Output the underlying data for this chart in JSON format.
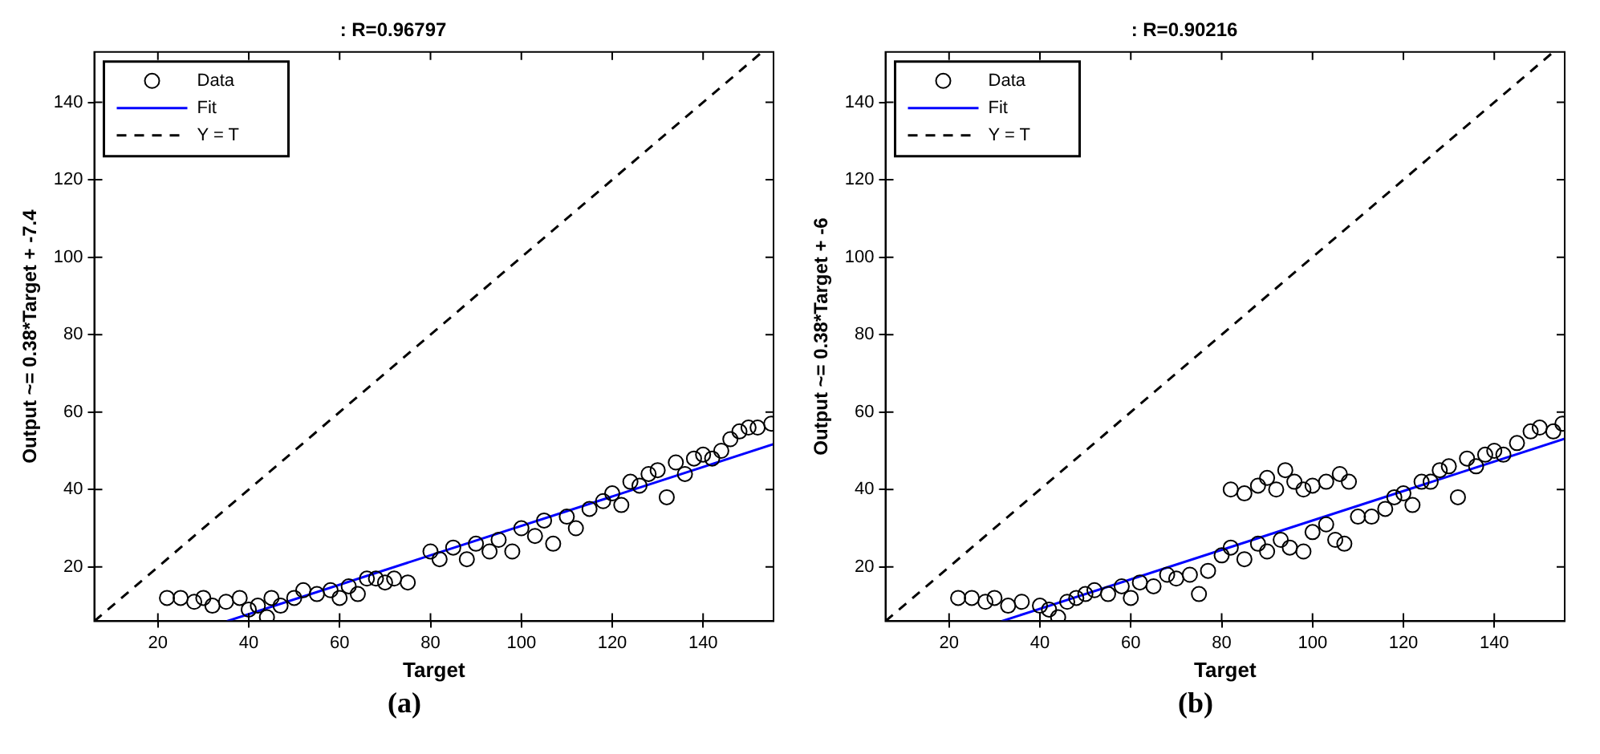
{
  "chart_data": [
    {
      "type": "scatter",
      "title": ": R=0.96797",
      "xlabel": "Target",
      "ylabel": "Output ~= 0.38*Target + -7.4",
      "annotations": [
        "(a)"
      ],
      "xlim": [
        6,
        155.5
      ],
      "ylim": [
        6,
        153
      ],
      "xticks": [
        20,
        40,
        60,
        80,
        100,
        120,
        140
      ],
      "yticks": [
        20,
        40,
        60,
        80,
        100,
        120,
        140
      ],
      "grid": false,
      "legend": "top left",
      "series": [
        {
          "name": "Data",
          "type": "scatter",
          "marker": "circle",
          "color": "#000000",
          "x": [
            22,
            25,
            28,
            30,
            32,
            35,
            38,
            40,
            42,
            44,
            45,
            47,
            50,
            52,
            55,
            58,
            60,
            62,
            64,
            66,
            68,
            70,
            72,
            75,
            80,
            82,
            85,
            88,
            90,
            93,
            95,
            98,
            100,
            103,
            105,
            107,
            110,
            112,
            115,
            118,
            120,
            122,
            124,
            126,
            128,
            130,
            132,
            134,
            136,
            138,
            140,
            142,
            144,
            146,
            148,
            150,
            152,
            155
          ],
          "values": [
            12,
            12,
            11,
            12,
            10,
            11,
            12,
            9,
            10,
            7,
            12,
            10,
            12,
            14,
            13,
            14,
            12,
            15,
            13,
            17,
            17,
            16,
            17,
            16,
            24,
            22,
            25,
            22,
            26,
            24,
            27,
            24,
            30,
            28,
            32,
            26,
            33,
            30,
            35,
            37,
            39,
            36,
            42,
            41,
            44,
            45,
            38,
            47,
            44,
            48,
            49,
            48,
            50,
            53,
            55,
            56,
            56,
            57
          ]
        },
        {
          "name": "Fit",
          "type": "line",
          "marker": "none",
          "color": "#0000ff",
          "x": [
            35.2,
            155.5
          ],
          "values": [
            6,
            51.7
          ]
        },
        {
          "name": "Y = T",
          "type": "line",
          "marker": "none",
          "line_style": "dashed",
          "color": "#000000",
          "x": [
            6,
            153
          ],
          "values": [
            6,
            153
          ]
        }
      ]
    },
    {
      "type": "scatter",
      "title": ": R=0.90216",
      "xlabel": "Target",
      "ylabel": "Output ~= 0.38*Target + -6",
      "annotations": [
        "(b)"
      ],
      "xlim": [
        6,
        155.5
      ],
      "ylim": [
        6,
        153
      ],
      "xticks": [
        20,
        40,
        60,
        80,
        100,
        120,
        140
      ],
      "yticks": [
        20,
        40,
        60,
        80,
        100,
        120,
        140
      ],
      "grid": false,
      "legend": "top left",
      "series": [
        {
          "name": "Data",
          "type": "scatter",
          "marker": "circle",
          "color": "#000000",
          "x": [
            22,
            25,
            28,
            30,
            33,
            36,
            40,
            42,
            44,
            46,
            48,
            50,
            52,
            55,
            58,
            60,
            62,
            65,
            68,
            70,
            73,
            75,
            77,
            80,
            82,
            85,
            88,
            90,
            93,
            95,
            98,
            100,
            103,
            105,
            107,
            110,
            113,
            116,
            118,
            120,
            122,
            124,
            126,
            128,
            130,
            132,
            134,
            136,
            138,
            140,
            142,
            145,
            148,
            150,
            153,
            155,
            82,
            85,
            88,
            90,
            92,
            94,
            96,
            98,
            100,
            103,
            106,
            108
          ],
          "values": [
            12,
            12,
            11,
            12,
            10,
            11,
            10,
            9,
            7,
            11,
            12,
            13,
            14,
            13,
            15,
            12,
            16,
            15,
            18,
            17,
            18,
            13,
            19,
            23,
            25,
            22,
            26,
            24,
            27,
            25,
            24,
            29,
            31,
            27,
            26,
            33,
            33,
            35,
            38,
            39,
            36,
            42,
            42,
            45,
            46,
            38,
            48,
            46,
            49,
            50,
            49,
            52,
            55,
            56,
            55,
            57,
            40,
            39,
            41,
            43,
            40,
            45,
            42,
            40,
            41,
            42,
            44,
            42
          ]
        },
        {
          "name": "Fit",
          "type": "line",
          "marker": "none",
          "color": "#0000ff",
          "x": [
            31.6,
            155.5
          ],
          "values": [
            6,
            53.1
          ]
        },
        {
          "name": "Y = T",
          "type": "line",
          "marker": "none",
          "line_style": "dashed",
          "color": "#000000",
          "x": [
            6,
            153
          ],
          "values": [
            6,
            153
          ]
        }
      ]
    }
  ]
}
